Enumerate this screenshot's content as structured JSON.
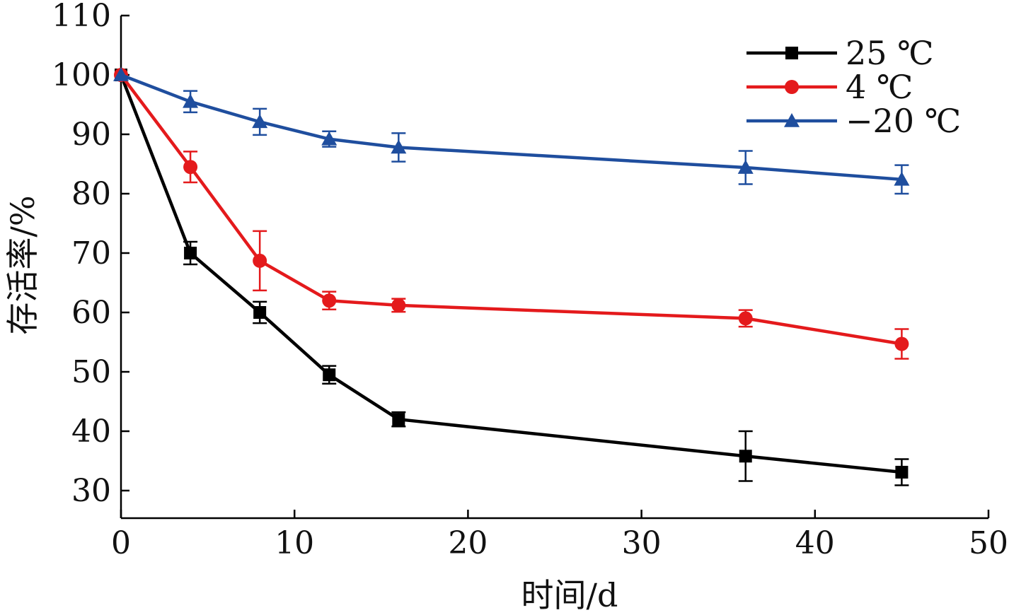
{
  "chart_data": {
    "type": "line",
    "title": "",
    "xlabel": "时间/d",
    "ylabel": "存活率/%",
    "xlim": [
      0,
      50
    ],
    "ylim": [
      25,
      110
    ],
    "xticks": [
      0,
      10,
      20,
      30,
      40,
      50
    ],
    "yticks": [
      30,
      40,
      50,
      60,
      70,
      80,
      90,
      100,
      110
    ],
    "grid": false,
    "legend_position": "top-right",
    "x": [
      0,
      4,
      8,
      12,
      16,
      36,
      45
    ],
    "series": [
      {
        "name": "25 ℃",
        "color": "#000000",
        "marker": "square",
        "values": [
          100,
          70,
          60,
          49.5,
          42,
          35.8,
          33.1
        ],
        "errors": [
          0,
          1.9,
          1.8,
          1.5,
          1.2,
          4.2,
          2.2
        ]
      },
      {
        "name": "4 ℃",
        "color": "#e41a1c",
        "marker": "circle",
        "values": [
          100,
          84.5,
          68.7,
          62,
          61.2,
          59,
          54.7
        ],
        "errors": [
          0,
          2.6,
          5,
          1.5,
          1.1,
          1.4,
          2.5
        ]
      },
      {
        "name": "−20 ℃",
        "color": "#1f4e9e",
        "marker": "triangle",
        "values": [
          100,
          95.5,
          92.1,
          89.2,
          87.8,
          84.4,
          82.4
        ],
        "errors": [
          0,
          1.8,
          2.2,
          1.3,
          2.4,
          2.8,
          2.4
        ]
      }
    ]
  }
}
